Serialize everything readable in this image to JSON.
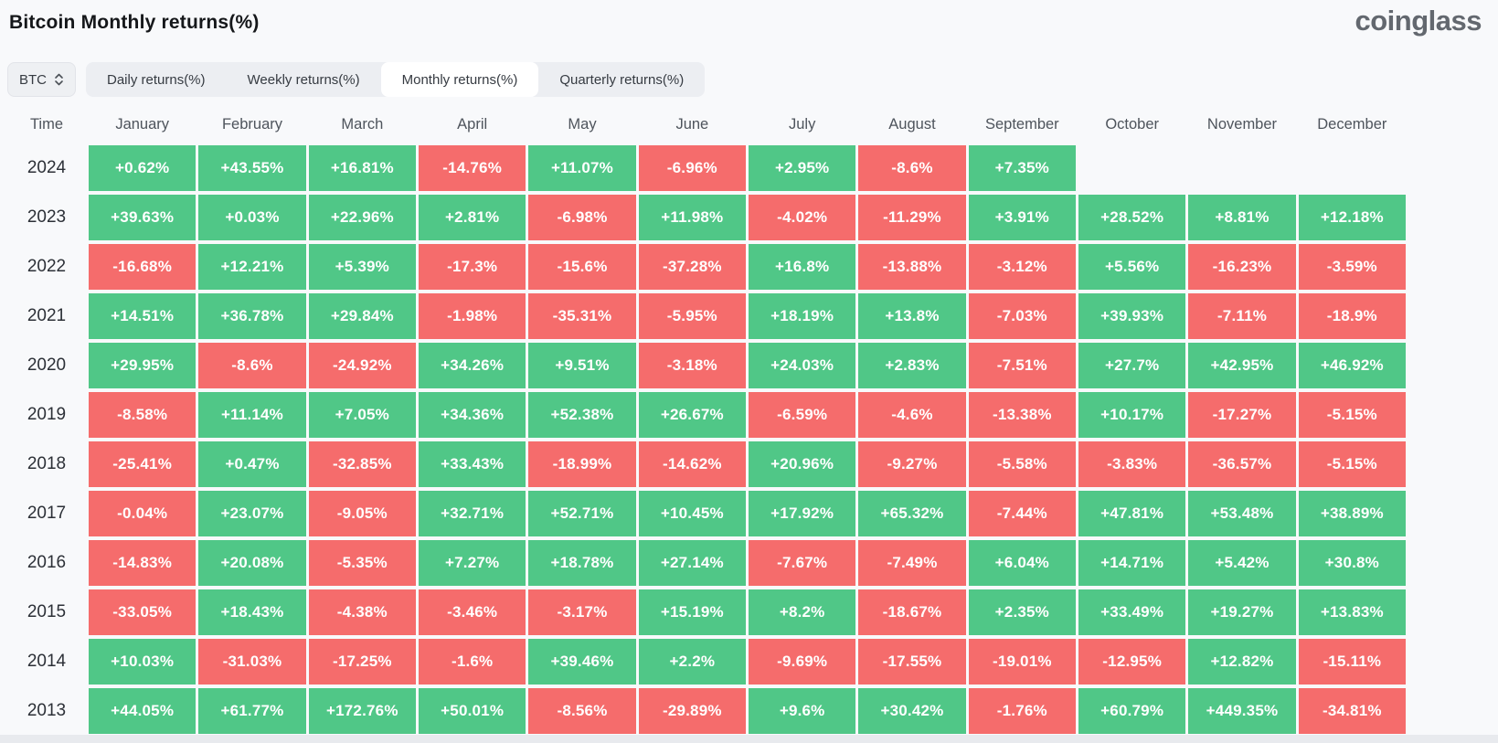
{
  "page": {
    "title": "Bitcoin Monthly returns(%)",
    "logo_text": "coinglass"
  },
  "controls": {
    "symbol_select": {
      "value": "BTC"
    },
    "tabs": [
      {
        "label": "Daily returns(%)",
        "active": false
      },
      {
        "label": "Weekly returns(%)",
        "active": false
      },
      {
        "label": "Monthly returns(%)",
        "active": true
      },
      {
        "label": "Quarterly returns(%)",
        "active": false
      }
    ]
  },
  "chart_data": {
    "type": "heatmap",
    "title": "Bitcoin Monthly returns(%)",
    "columns": [
      "Time",
      "January",
      "February",
      "March",
      "April",
      "May",
      "June",
      "July",
      "August",
      "September",
      "October",
      "November",
      "December"
    ],
    "rows": [
      {
        "year": "2024",
        "values": [
          "+0.62%",
          "+43.55%",
          "+16.81%",
          "-14.76%",
          "+11.07%",
          "-6.96%",
          "+2.95%",
          "-8.6%",
          "+7.35%",
          "",
          "",
          ""
        ]
      },
      {
        "year": "2023",
        "values": [
          "+39.63%",
          "+0.03%",
          "+22.96%",
          "+2.81%",
          "-6.98%",
          "+11.98%",
          "-4.02%",
          "-11.29%",
          "+3.91%",
          "+28.52%",
          "+8.81%",
          "+12.18%"
        ]
      },
      {
        "year": "2022",
        "values": [
          "-16.68%",
          "+12.21%",
          "+5.39%",
          "-17.3%",
          "-15.6%",
          "-37.28%",
          "+16.8%",
          "-13.88%",
          "-3.12%",
          "+5.56%",
          "-16.23%",
          "-3.59%"
        ]
      },
      {
        "year": "2021",
        "values": [
          "+14.51%",
          "+36.78%",
          "+29.84%",
          "-1.98%",
          "-35.31%",
          "-5.95%",
          "+18.19%",
          "+13.8%",
          "-7.03%",
          "+39.93%",
          "-7.11%",
          "-18.9%"
        ]
      },
      {
        "year": "2020",
        "values": [
          "+29.95%",
          "-8.6%",
          "-24.92%",
          "+34.26%",
          "+9.51%",
          "-3.18%",
          "+24.03%",
          "+2.83%",
          "-7.51%",
          "+27.7%",
          "+42.95%",
          "+46.92%"
        ]
      },
      {
        "year": "2019",
        "values": [
          "-8.58%",
          "+11.14%",
          "+7.05%",
          "+34.36%",
          "+52.38%",
          "+26.67%",
          "-6.59%",
          "-4.6%",
          "-13.38%",
          "+10.17%",
          "-17.27%",
          "-5.15%"
        ]
      },
      {
        "year": "2018",
        "values": [
          "-25.41%",
          "+0.47%",
          "-32.85%",
          "+33.43%",
          "-18.99%",
          "-14.62%",
          "+20.96%",
          "-9.27%",
          "-5.58%",
          "-3.83%",
          "-36.57%",
          "-5.15%"
        ]
      },
      {
        "year": "2017",
        "values": [
          "-0.04%",
          "+23.07%",
          "-9.05%",
          "+32.71%",
          "+52.71%",
          "+10.45%",
          "+17.92%",
          "+65.32%",
          "-7.44%",
          "+47.81%",
          "+53.48%",
          "+38.89%"
        ]
      },
      {
        "year": "2016",
        "values": [
          "-14.83%",
          "+20.08%",
          "-5.35%",
          "+7.27%",
          "+18.78%",
          "+27.14%",
          "-7.67%",
          "-7.49%",
          "+6.04%",
          "+14.71%",
          "+5.42%",
          "+30.8%"
        ]
      },
      {
        "year": "2015",
        "values": [
          "-33.05%",
          "+18.43%",
          "-4.38%",
          "-3.46%",
          "-3.17%",
          "+15.19%",
          "+8.2%",
          "-18.67%",
          "+2.35%",
          "+33.49%",
          "+19.27%",
          "+13.83%"
        ]
      },
      {
        "year": "2014",
        "values": [
          "+10.03%",
          "-31.03%",
          "-17.25%",
          "-1.6%",
          "+39.46%",
          "+2.2%",
          "-9.69%",
          "-17.55%",
          "-19.01%",
          "-12.95%",
          "+12.82%",
          "-15.11%"
        ]
      },
      {
        "year": "2013",
        "values": [
          "+44.05%",
          "+61.77%",
          "+172.76%",
          "+50.01%",
          "-8.56%",
          "-29.89%",
          "+9.6%",
          "+30.42%",
          "-1.76%",
          "+60.79%",
          "+449.35%",
          "-34.81%"
        ]
      }
    ],
    "colors": {
      "positive": "#50c787",
      "negative": "#f56c6c"
    },
    "legend": "green = positive monthly return, red = negative monthly return"
  }
}
